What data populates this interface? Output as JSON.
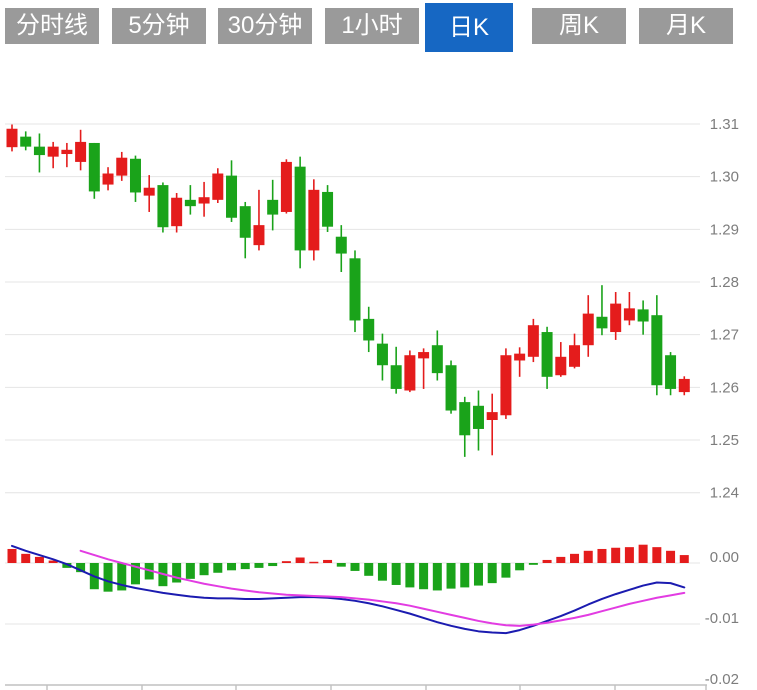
{
  "toolbar": {
    "tabs": [
      {
        "label": "分时线",
        "active": false
      },
      {
        "label": "5分钟",
        "active": false
      },
      {
        "label": "30分钟",
        "active": false
      },
      {
        "label": "1小时",
        "active": false
      },
      {
        "label": "日K",
        "active": true
      },
      {
        "label": "周K",
        "active": false
      },
      {
        "label": "月K",
        "active": false
      }
    ]
  },
  "colors": {
    "up_candle": "#e41c1c",
    "down_candle": "#1aa31a",
    "active_tab": "#1667c3",
    "inactive_tab": "#9a9a9a",
    "diff_line": "#1b1bb0",
    "dea_line": "#e23ce2",
    "gridline": "#e4e4e4",
    "axis_line": "#c0c0c0",
    "axis_text": "#7d7d7d"
  },
  "chart_data": {
    "type": "candlestick",
    "convention": "red=up, green=down",
    "grid": true,
    "price_axis": {
      "side": "right",
      "min": 1.24,
      "max": 1.31,
      "tick_labels": [
        "1.31",
        "1.30",
        "1.29",
        "1.28",
        "1.27",
        "1.26",
        "1.25",
        "1.24"
      ],
      "tick_values": [
        1.31,
        1.3,
        1.29,
        1.28,
        1.27,
        1.26,
        1.25,
        1.24
      ]
    },
    "candles_ohlc": [
      [
        1.3056,
        1.3099,
        1.3048,
        1.3091
      ],
      [
        1.3076,
        1.3086,
        1.305,
        1.3057
      ],
      [
        1.3057,
        1.3082,
        1.3008,
        1.3041
      ],
      [
        1.3038,
        1.3066,
        1.3016,
        1.3057
      ],
      [
        1.3043,
        1.3064,
        1.3018,
        1.3051
      ],
      [
        1.3028,
        1.3089,
        1.3012,
        1.3066
      ],
      [
        1.3064,
        1.3064,
        1.2958,
        1.2972
      ],
      [
        1.2985,
        1.3018,
        1.2974,
        1.3006
      ],
      [
        1.3002,
        1.3047,
        1.2992,
        1.3036
      ],
      [
        1.3034,
        1.304,
        1.2952,
        1.297
      ],
      [
        1.2964,
        1.3003,
        1.2933,
        1.2979
      ],
      [
        1.2984,
        1.2989,
        1.2894,
        1.2904
      ],
      [
        1.2906,
        1.2969,
        1.2894,
        1.296
      ],
      [
        1.2956,
        1.2984,
        1.2928,
        1.2944
      ],
      [
        1.2949,
        1.299,
        1.2924,
        1.2961
      ],
      [
        1.2956,
        1.3016,
        1.295,
        1.3006
      ],
      [
        1.3002,
        1.3031,
        1.2914,
        1.2922
      ],
      [
        1.2944,
        1.2952,
        1.2845,
        1.2884
      ],
      [
        1.287,
        1.2975,
        1.286,
        1.2908
      ],
      [
        1.2956,
        1.2994,
        1.2898,
        1.2928
      ],
      [
        1.2933,
        1.3033,
        1.293,
        1.3028
      ],
      [
        1.3019,
        1.3038,
        1.2826,
        1.286
      ],
      [
        1.286,
        1.2995,
        1.2841,
        1.2975
      ],
      [
        1.2971,
        1.2984,
        1.2895,
        1.2905
      ],
      [
        1.2886,
        1.2908,
        1.2819,
        1.2854
      ],
      [
        1.2845,
        1.286,
        1.2705,
        1.2727
      ],
      [
        1.273,
        1.2753,
        1.2667,
        1.2689
      ],
      [
        1.2683,
        1.2702,
        1.2613,
        1.2642
      ],
      [
        1.2642,
        1.2677,
        1.2588,
        1.2597
      ],
      [
        1.2594,
        1.267,
        1.2591,
        1.2661
      ],
      [
        1.2655,
        1.2674,
        1.2597,
        1.2667
      ],
      [
        1.268,
        1.2708,
        1.2613,
        1.2627
      ],
      [
        1.2642,
        1.2651,
        1.255,
        1.2556
      ],
      [
        1.2572,
        1.2582,
        1.2468,
        1.2509
      ],
      [
        1.2565,
        1.2594,
        1.248,
        1.2521
      ],
      [
        1.2538,
        1.2588,
        1.2471,
        1.2553
      ],
      [
        1.2547,
        1.2674,
        1.254,
        1.2661
      ],
      [
        1.2651,
        1.2676,
        1.262,
        1.2664
      ],
      [
        1.2658,
        1.273,
        1.2648,
        1.2718
      ],
      [
        1.2705,
        1.2715,
        1.2597,
        1.262
      ],
      [
        1.2623,
        1.2686,
        1.262,
        1.2658
      ],
      [
        1.2639,
        1.2702,
        1.2636,
        1.268
      ],
      [
        1.268,
        1.2775,
        1.2658,
        1.274
      ],
      [
        1.2734,
        1.2794,
        1.2699,
        1.2712
      ],
      [
        1.2705,
        1.2781,
        1.269,
        1.2759
      ],
      [
        1.2727,
        1.2781,
        1.2718,
        1.275
      ],
      [
        1.2748,
        1.2765,
        1.27,
        1.2725
      ],
      [
        1.2737,
        1.2775,
        1.2585,
        1.2604
      ],
      [
        1.2661,
        1.2667,
        1.2585,
        1.2597
      ],
      [
        1.2591,
        1.2621,
        1.2585,
        1.2616
      ]
    ],
    "macd": {
      "axis": {
        "tick_labels": [
          "0.00",
          "-0.01",
          "-0.02"
        ],
        "tick_values": [
          0.0,
          -0.01,
          -0.02
        ]
      },
      "histogram": [
        0.0023,
        0.0015,
        0.001,
        0.0004,
        -0.0008,
        -0.0015,
        -0.0043,
        -0.0047,
        -0.0045,
        -0.0035,
        -0.0027,
        -0.0038,
        -0.0032,
        -0.0026,
        -0.002,
        -0.0016,
        -0.0012,
        -0.001,
        -0.0008,
        -0.0005,
        0.0003,
        0.0009,
        0.0002,
        0.0005,
        -0.0006,
        -0.0013,
        -0.0021,
        -0.0029,
        -0.0036,
        -0.004,
        -0.0043,
        -0.0045,
        -0.0042,
        -0.004,
        -0.0037,
        -0.0033,
        -0.0024,
        -0.0012,
        -0.0003,
        0.0005,
        0.001,
        0.0015,
        0.002,
        0.0023,
        0.0025,
        0.0026,
        0.003,
        0.0026,
        0.002,
        0.0013
      ],
      "diff": [
        0.0028,
        0.002,
        0.0013,
        0.0006,
        -0.0002,
        -0.0012,
        -0.0022,
        -0.003,
        -0.0036,
        -0.0041,
        -0.0045,
        -0.0049,
        -0.0052,
        -0.0055,
        -0.0057,
        -0.0058,
        -0.0058,
        -0.0059,
        -0.0059,
        -0.0058,
        -0.0057,
        -0.0056,
        -0.0056,
        -0.0057,
        -0.0059,
        -0.0062,
        -0.0066,
        -0.0071,
        -0.0077,
        -0.0083,
        -0.009,
        -0.0097,
        -0.0103,
        -0.0108,
        -0.0112,
        -0.0114,
        -0.0115,
        -0.011,
        -0.0103,
        -0.0095,
        -0.0087,
        -0.0078,
        -0.0068,
        -0.0059,
        -0.0051,
        -0.0044,
        -0.0037,
        -0.0032,
        -0.0033,
        -0.004
      ],
      "dea": [
        null,
        null,
        null,
        null,
        null,
        0.002,
        0.0013,
        0.0006,
        0.0,
        -0.0006,
        -0.0012,
        -0.0018,
        -0.0024,
        -0.0029,
        -0.0034,
        -0.0038,
        -0.0042,
        -0.0045,
        -0.0048,
        -0.005,
        -0.0052,
        -0.0053,
        -0.0054,
        -0.0055,
        -0.0056,
        -0.0058,
        -0.006,
        -0.0063,
        -0.0066,
        -0.007,
        -0.0075,
        -0.008,
        -0.0085,
        -0.009,
        -0.0095,
        -0.0099,
        -0.0102,
        -0.0103,
        -0.0101,
        -0.0098,
        -0.0094,
        -0.009,
        -0.0085,
        -0.0079,
        -0.0073,
        -0.0067,
        -0.0062,
        -0.0057,
        -0.0053,
        -0.0049
      ]
    }
  }
}
